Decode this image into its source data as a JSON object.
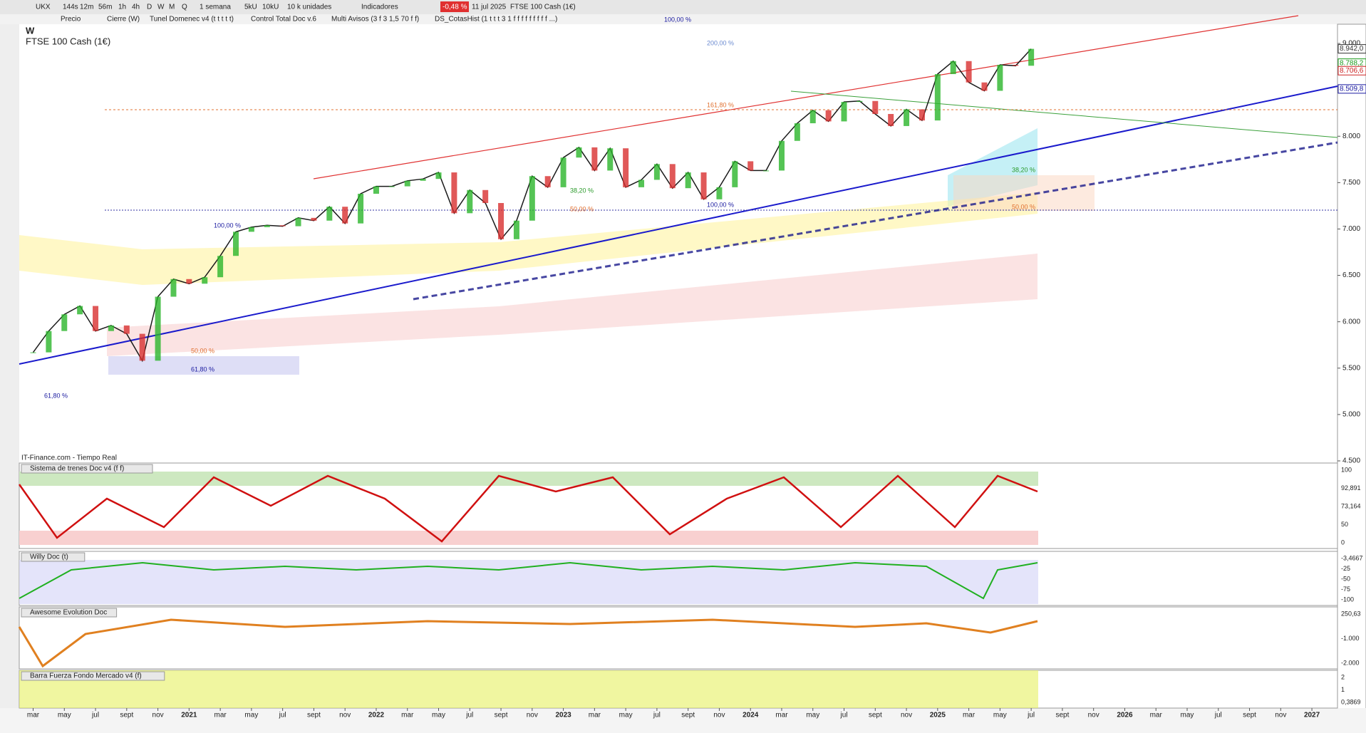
{
  "toolbar": {
    "symbol": "UKX",
    "periods": [
      "144s",
      "12m",
      "56m",
      "1h",
      "4h",
      "D",
      "W",
      "M",
      "Q"
    ],
    "range": "1 semana",
    "units_a": "5kU",
    "units_b": "10kU",
    "units_select": "10 k unidades",
    "indicators": "Indicadores",
    "change": "-0,48 %",
    "date": "11 jul 2025",
    "instrument": "FTSE 100 Cash (1€)"
  },
  "indicator_bar": [
    "Precio",
    "Cierre (W)",
    "Tunel Domenec v4 (t t t t t)",
    "Control Total Doc v.6",
    "Multi Avisos (3 f 3 1,5 70 f f)",
    "DS_CotasHist (1 t t t 3 1 f f f f f f f f f ...)"
  ],
  "chart_data": {
    "type": "line",
    "title": "FTSE 100 Cash (1€)",
    "subtitle": "W",
    "source": "IT-Finance.com - Tiempo Real",
    "color": "#1a1a1a",
    "categories": [
      "mar",
      null,
      "may",
      null,
      "jul",
      null,
      "sept",
      null,
      "nov",
      null,
      "2021",
      null,
      "mar",
      null,
      "may",
      null,
      "jul",
      null,
      "sept",
      null,
      "nov",
      null,
      "2022",
      null,
      "mar",
      null,
      "may",
      null,
      "jul",
      null,
      "sept",
      null,
      "nov",
      null,
      "2023",
      null,
      "mar",
      null,
      "may",
      null,
      "jul",
      null,
      "sept",
      null,
      "nov",
      null,
      "2024",
      null,
      "mar",
      null,
      "may",
      null,
      "jul",
      null,
      "sept",
      null,
      "nov",
      null,
      "2025",
      null,
      "mar",
      null,
      "may",
      null,
      "jul",
      null,
      "sept",
      null,
      "nov",
      null,
      "2026",
      null,
      "mar",
      null,
      "may",
      null,
      "jul",
      null,
      "sept",
      null,
      "nov",
      null,
      "2027"
    ],
    "values": [
      5670,
      5900,
      6080,
      6170,
      5900,
      5960,
      5870,
      5580,
      6270,
      6460,
      6410,
      6480,
      6710,
      6970,
      7020,
      7040,
      7030,
      7120,
      7090,
      7240,
      7060,
      7380,
      7460,
      7460,
      7520,
      7540,
      7610,
      7170,
      7420,
      7280,
      6890,
      7090,
      7570,
      7450,
      7770,
      7880,
      7630,
      7870,
      7450,
      7530,
      7700,
      7440,
      7610,
      7320,
      7450,
      7730,
      7630,
      7630,
      7950,
      8140,
      8280,
      8160,
      8370,
      8380,
      8240,
      8110,
      8290,
      8170,
      8670,
      8810,
      8580,
      8490,
      8770,
      8760,
      8942,
      null,
      null,
      null,
      null,
      null,
      null,
      null,
      null,
      null,
      null,
      null,
      null,
      null,
      null,
      null,
      null,
      null,
      null
    ],
    "ylim": [
      4500,
      9200
    ],
    "yticks": [
      {
        "value": 4500,
        "label": "4.500"
      },
      {
        "value": 5000,
        "label": "5.000"
      },
      {
        "value": 5500,
        "label": "5.500"
      },
      {
        "value": 6000,
        "label": "6.000"
      },
      {
        "value": 6500,
        "label": "6.500"
      },
      {
        "value": 7000,
        "label": "7.000"
      },
      {
        "value": 7500,
        "label": "7.500"
      },
      {
        "value": 8000,
        "label": "8.000"
      },
      {
        "value": 8500,
        "label": "8.500"
      },
      {
        "value": 9000,
        "label": "9.000"
      }
    ],
    "price_labels": [
      {
        "value": 8942.0,
        "label": "8.942,0",
        "color": "#333333"
      },
      {
        "value": 8788.2,
        "label": "8.788,2",
        "color": "#1a9a1a"
      },
      {
        "value": 8706.6,
        "label": "8.706,6",
        "color": "#cc2222"
      },
      {
        "value": 8509.8,
        "label": "8.509,8",
        "color": "#1a1aa0"
      }
    ],
    "annotations": [
      "100,00 %",
      "200,00 %",
      "161,80 %",
      "100,00 %",
      "100,00 %",
      "38,20 %",
      "50,00 %",
      "61,80 %",
      "61,80 %",
      "50,00 %",
      "38,20 %",
      "50,00 %"
    ]
  },
  "panels": [
    {
      "title": "Sistema de trenes Doc v4 (f f)",
      "labels": [
        "100",
        "92,891",
        "73,164",
        "50",
        "0"
      ]
    },
    {
      "title": "Willy Doc (t)",
      "labels": [
        "-3,4667",
        "-25",
        "-50",
        "-75",
        "-100"
      ]
    },
    {
      "title": "Awesome Evolution Doc",
      "labels": [
        "250,63",
        "-1.000",
        "-2.000"
      ]
    },
    {
      "title": "Barra Fuerza Fondo Mercado v4 (f)",
      "labels": [
        "2",
        "1",
        "0,3869"
      ]
    }
  ]
}
